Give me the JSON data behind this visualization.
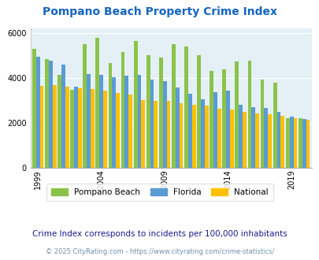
{
  "title": "Pompano Beach Property Crime Index",
  "subtitle": "Crime Index corresponds to incidents per 100,000 inhabitants",
  "footer": "© 2025 CityRating.com - https://www.cityrating.com/crime-statistics/",
  "years": [
    1999,
    2000,
    2001,
    2002,
    2003,
    2004,
    2005,
    2006,
    2007,
    2008,
    2009,
    2010,
    2011,
    2012,
    2013,
    2014,
    2015,
    2016,
    2017,
    2018,
    2019,
    2020
  ],
  "pompano": [
    5300,
    4850,
    4150,
    3480,
    5500,
    5800,
    4680,
    5150,
    5650,
    5000,
    4900,
    5500,
    5400,
    5000,
    4330,
    4400,
    4720,
    4780,
    3920,
    3800,
    2200,
    2200
  ],
  "florida": [
    4950,
    4780,
    4600,
    3600,
    4160,
    4130,
    4030,
    4100,
    4150,
    3920,
    3870,
    3570,
    3280,
    3050,
    3380,
    3420,
    2820,
    2700,
    2660,
    2500,
    2280,
    2160
  ],
  "national": [
    3650,
    3680,
    3600,
    3550,
    3500,
    3450,
    3320,
    3270,
    3010,
    2970,
    2980,
    2890,
    2820,
    2770,
    2620,
    2590,
    2490,
    2430,
    2390,
    2320,
    2220,
    2120
  ],
  "pompano_color": "#8bc34a",
  "florida_color": "#5b9bd5",
  "national_color": "#ffc000",
  "bg_color": "#e4f0f6",
  "title_color": "#1565c0",
  "subtitle_color": "#1a1a8c",
  "footer_color": "#7090b0",
  "ylim": [
    0,
    6200
  ],
  "yticks": [
    0,
    2000,
    4000,
    6000
  ],
  "xtick_years": [
    1999,
    2004,
    2009,
    2014,
    2019
  ]
}
